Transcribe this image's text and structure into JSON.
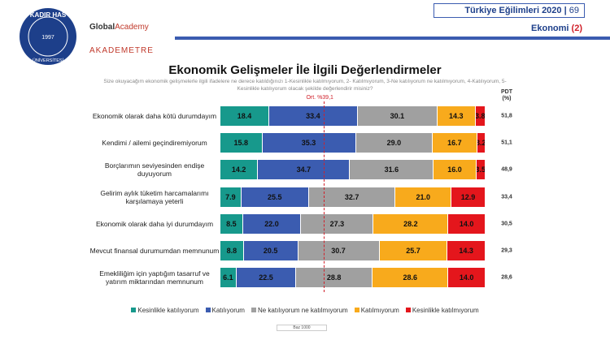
{
  "header": {
    "logo_top": "KADIR HAS",
    "logo_bottom": "ÜNİVERSİTESİ",
    "logo_year": 1997,
    "brand_1": "Global",
    "brand_2": "Academy",
    "brand_3": "AKADEMETRE",
    "report": "Türkiye Eğilimleri 2020",
    "page": 69,
    "section": "Ekonomi",
    "section_no": "(2)"
  },
  "chart_data": {
    "type": "bar",
    "orientation": "horizontal",
    "stacked": true,
    "title": "Ekonomik Gelişmeler İle İlgili Değerlendirmeler",
    "subtitle": "Size okuyacağım ekonomik gelişmelerle ilgili ifadelere ne derece katıldığınızı 1-Kesinlikle katılmıyorum, 2- Katılmıyorum, 3-Ne katılıyorum ne katılmıyorum, 4-Katılıyorum, 5-Kesinlikle katılıyorum olacak şekilde değerlendirir misiniz?",
    "categories": [
      "Ekonomik olarak daha kötü durumdayım",
      "Kendimi / ailemi geçindiremiyorum",
      "Borçlarımın seviyesinden endişe duyuyorum",
      "Gelirim aylık tüketim harcamalarımı karşılamaya yeterli",
      "Ekonomik olarak daha iyi durumdayım",
      "Mevcut finansal durumumdan memnunum",
      "Emekliliğim için yaptığım tasarruf ve yatırım miktarından memnunum"
    ],
    "series": [
      {
        "name": "Kesinlikle katılıyorum",
        "color": "#17998c",
        "values": [
          18.4,
          15.8,
          14.2,
          7.9,
          8.5,
          8.8,
          6.1
        ],
        "value_labels": [
          "18.4",
          "15.8",
          "14.2",
          "7.9",
          "8.5",
          "8.8",
          "6.1"
        ]
      },
      {
        "name": "Katılıyorum",
        "color": "#3b5cb0",
        "values": [
          33.4,
          35.3,
          34.7,
          25.5,
          22.0,
          20.5,
          22.5
        ],
        "value_labels": [
          "33.4",
          "35.3",
          "34.7",
          "25.5",
          "22.0",
          "20.5",
          "22.5"
        ]
      },
      {
        "name": "Ne katılıyorum ne katılmıyorum",
        "color": "#a0a0a0",
        "values": [
          30.1,
          29.0,
          31.6,
          32.7,
          27.3,
          30.7,
          28.8
        ],
        "value_labels": [
          "30.1",
          "29.0",
          "31.6",
          "32.7",
          "27.3",
          "30.7",
          "28.8"
        ]
      },
      {
        "name": "Katılmıyorum",
        "color": "#f8aa1c",
        "values": [
          14.3,
          16.7,
          16.0,
          21.0,
          28.2,
          25.7,
          28.6
        ],
        "value_labels": [
          "14.3",
          "16.7",
          "16.0",
          "21.0",
          "28.2",
          "25.7",
          "28.6"
        ]
      },
      {
        "name": "Kesinlikle katılmıyorum",
        "color": "#e4161c",
        "values": [
          3.8,
          3.2,
          3.5,
          12.9,
          14.0,
          14.3,
          14.0
        ],
        "value_labels": [
          "3.8",
          "3.2",
          "3.5",
          "12.9",
          "14.0",
          "14.3",
          "14.0"
        ]
      }
    ],
    "xlim": [
      0,
      100
    ],
    "reference_line": {
      "value": 39.1,
      "label": "Ort. %39,1",
      "color": "#d0202a"
    },
    "pdt": {
      "title": "PDT",
      "unit": "(%)",
      "values": [
        51.8,
        51.1,
        48.9,
        33.4,
        30.5,
        29.3,
        28.6
      ],
      "value_labels": [
        "51,8",
        "51,1",
        "48,9",
        "33,4",
        "30,5",
        "29,3",
        "28,6"
      ]
    },
    "legend": "bottom",
    "note": "Baz 1000"
  }
}
